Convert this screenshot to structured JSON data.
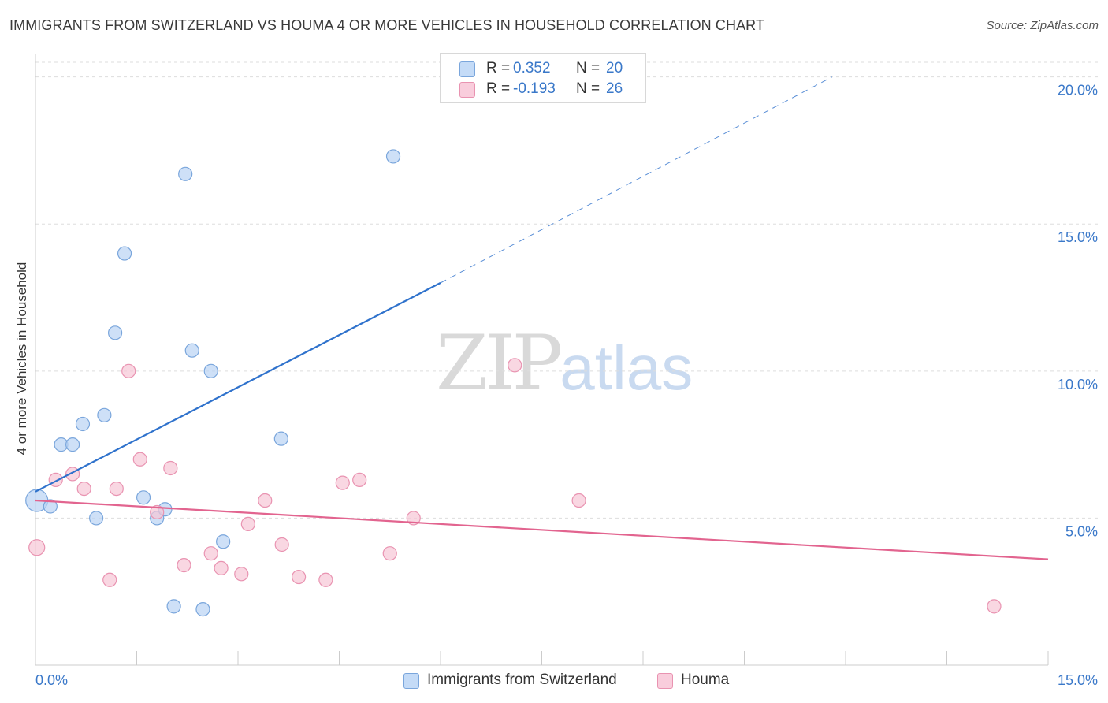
{
  "title": "IMMIGRANTS FROM SWITZERLAND VS HOUMA 4 OR MORE VEHICLES IN HOUSEHOLD CORRELATION CHART",
  "source": "Source: ZipAtlas.com",
  "watermark": {
    "part1": "ZIP",
    "part2": "atlas"
  },
  "legend": {
    "rows": [
      {
        "r_label": "R =",
        "r_value": "0.352",
        "n_label": "N =",
        "n_value": "20",
        "color": "#aecbf2"
      },
      {
        "r_label": "R =",
        "r_value": "-0.193",
        "n_label": "N =",
        "n_value": "26",
        "color": "#f7bfd2"
      }
    ]
  },
  "colors": {
    "blue_fill": "#b9d3f3",
    "blue_stroke": "#7aa6dc",
    "blue_line": "#2f72cc",
    "pink_fill": "#f7c6d6",
    "pink_stroke": "#e993b1",
    "pink_line": "#e2648f",
    "axis_text": "#3a78c9",
    "grid": "#dddddd"
  },
  "chart_data": {
    "type": "scatter",
    "xlabel": "",
    "ylabel": "4 or more Vehicles in Household",
    "xlim": [
      0,
      15
    ],
    "ylim": [
      0,
      20.5
    ],
    "x_tick_labels": [
      "0.0%",
      "15.0%"
    ],
    "y_ticks": [
      5,
      10,
      15,
      20
    ],
    "y_tick_labels": [
      "5.0%",
      "10.0%",
      "15.0%",
      "20.0%"
    ],
    "grid": "horizontal dashed",
    "legend_position": "top-center",
    "series": [
      {
        "name": "Immigrants from Switzerland",
        "color": "#aecbf2",
        "points": [
          [
            0.02,
            5.6
          ],
          [
            0.22,
            5.4
          ],
          [
            0.38,
            7.5
          ],
          [
            0.55,
            7.5
          ],
          [
            0.7,
            8.2
          ],
          [
            0.9,
            5.0
          ],
          [
            1.02,
            8.5
          ],
          [
            1.18,
            11.3
          ],
          [
            1.32,
            14.0
          ],
          [
            1.6,
            5.7
          ],
          [
            1.8,
            5.0
          ],
          [
            1.92,
            5.3
          ],
          [
            2.05,
            2.0
          ],
          [
            2.22,
            16.7
          ],
          [
            2.32,
            10.7
          ],
          [
            2.48,
            1.9
          ],
          [
            2.6,
            10.0
          ],
          [
            2.78,
            4.2
          ],
          [
            3.64,
            7.7
          ],
          [
            5.3,
            17.3
          ]
        ],
        "trend": {
          "x0": 0.0,
          "y0": 5.9,
          "x1": 6.0,
          "y1": 13.0,
          "dash_x1": 11.8,
          "dash_y1": 20.0
        }
      },
      {
        "name": "Houma",
        "color": "#f7bfd2",
        "points": [
          [
            0.02,
            4.0
          ],
          [
            0.3,
            6.3
          ],
          [
            0.55,
            6.5
          ],
          [
            0.72,
            6.0
          ],
          [
            1.1,
            2.9
          ],
          [
            1.2,
            6.0
          ],
          [
            1.38,
            10.0
          ],
          [
            1.55,
            7.0
          ],
          [
            1.8,
            5.2
          ],
          [
            2.0,
            6.7
          ],
          [
            2.2,
            3.4
          ],
          [
            2.6,
            3.8
          ],
          [
            2.75,
            3.3
          ],
          [
            3.05,
            3.1
          ],
          [
            3.15,
            4.8
          ],
          [
            3.4,
            5.6
          ],
          [
            3.65,
            4.1
          ],
          [
            3.9,
            3.0
          ],
          [
            4.3,
            2.9
          ],
          [
            4.55,
            6.2
          ],
          [
            4.8,
            6.3
          ],
          [
            5.25,
            3.8
          ],
          [
            5.6,
            5.0
          ],
          [
            7.1,
            10.2
          ],
          [
            8.05,
            5.6
          ],
          [
            14.2,
            2.0
          ]
        ],
        "trend": {
          "x0": 0.0,
          "y0": 5.6,
          "x1": 15.0,
          "y1": 3.6
        }
      }
    ]
  }
}
